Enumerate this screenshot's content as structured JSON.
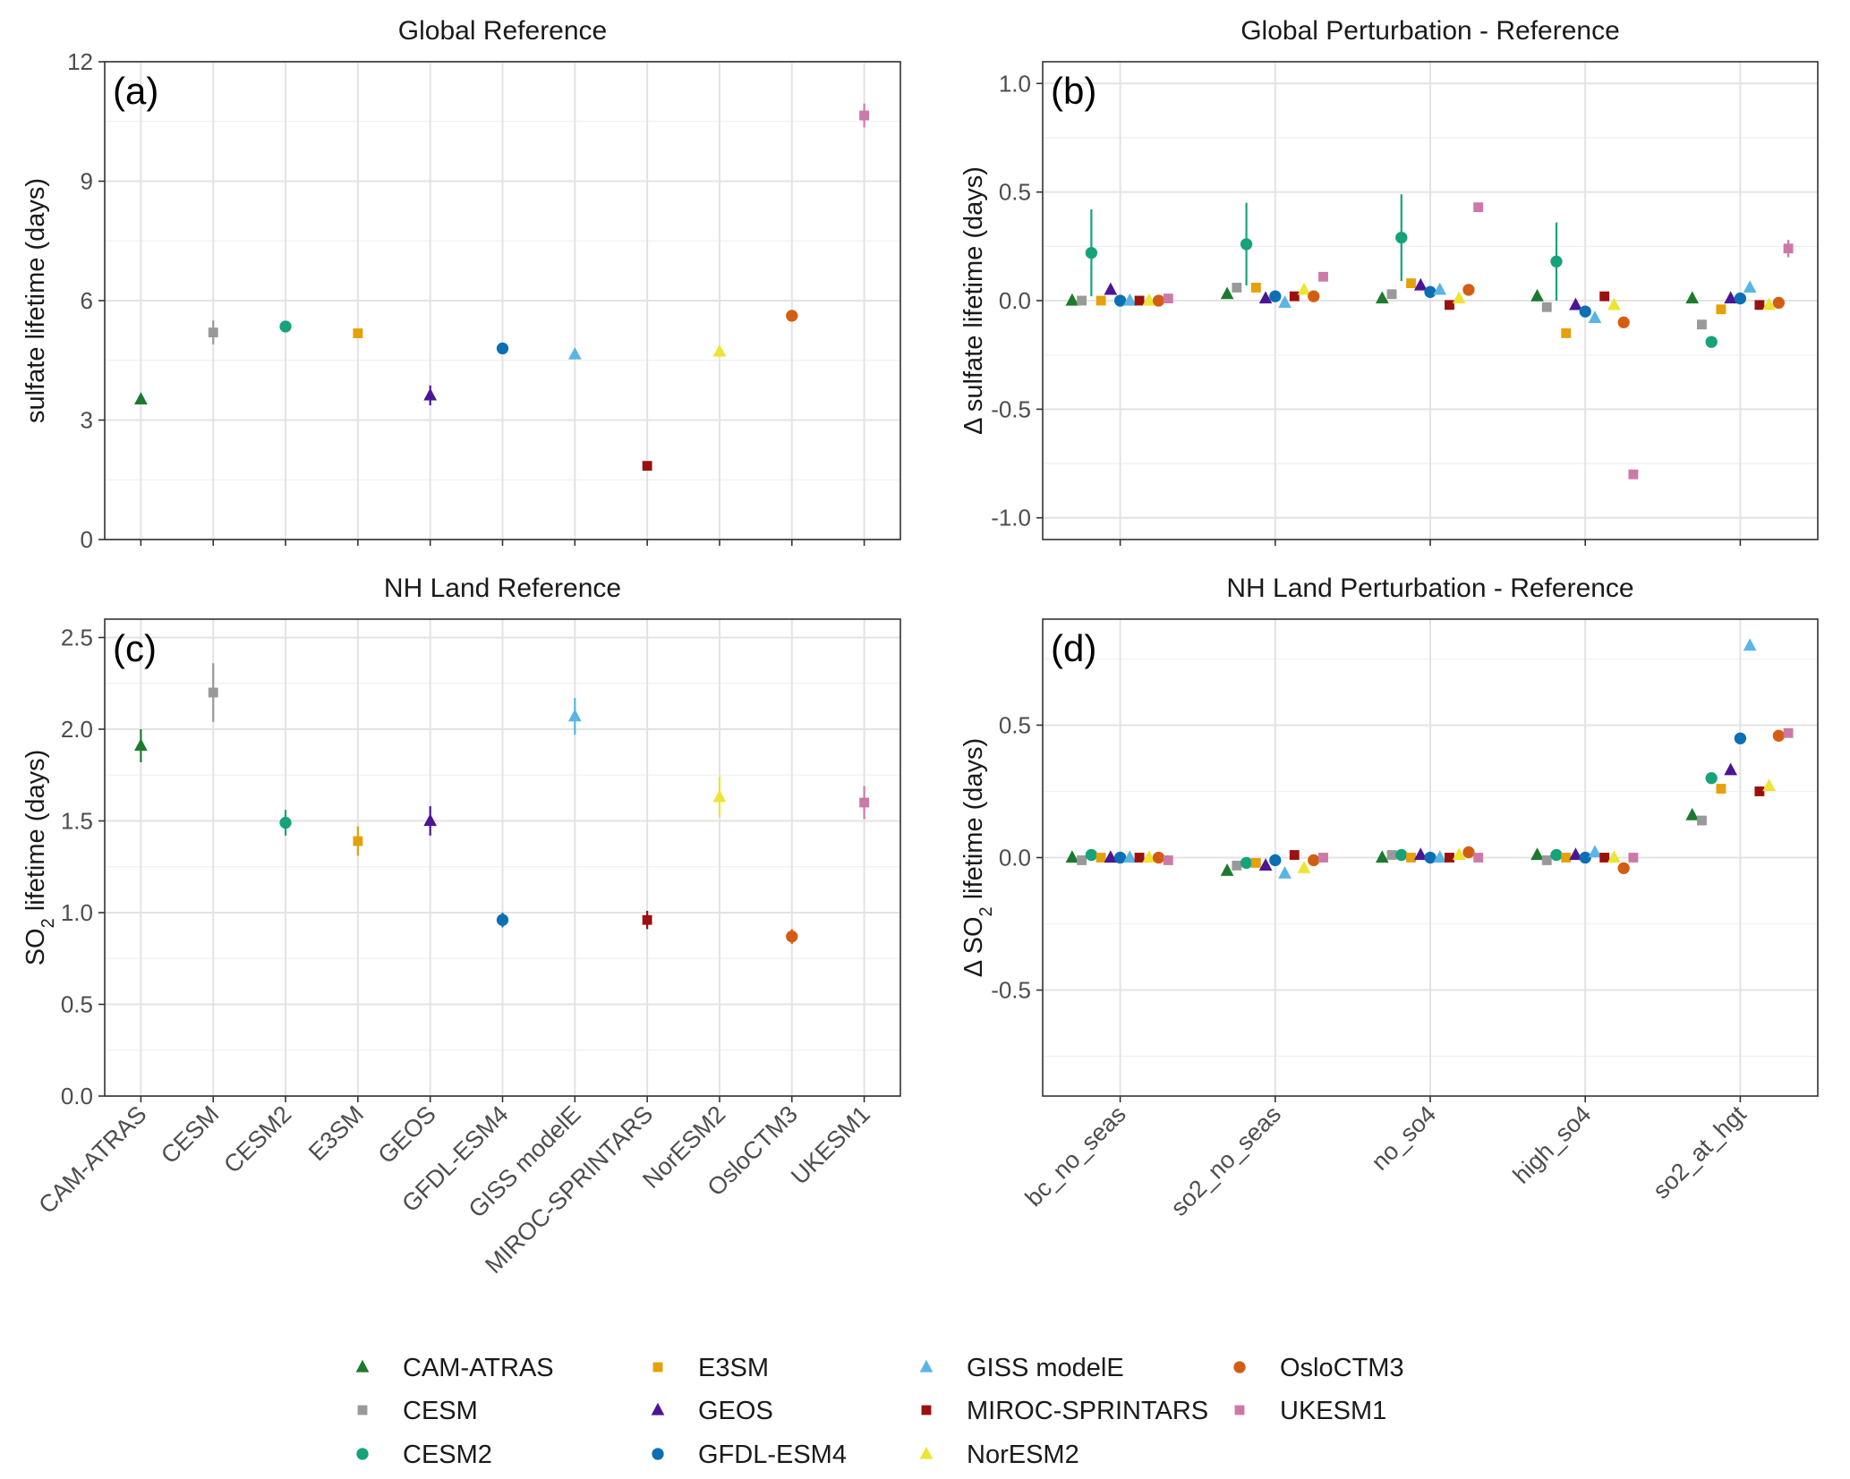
{
  "models": [
    "CAM-ATRAS",
    "CESM",
    "CESM2",
    "E3SM",
    "GEOS",
    "GFDL-ESM4",
    "GISS modelE",
    "MIROC-SPRINTARS",
    "NorESM2",
    "OsloCTM3",
    "UKESM1"
  ],
  "model_styles": {
    "CAM-ATRAS": {
      "color": "#1b7a2e",
      "shape": "triangle"
    },
    "CESM": {
      "color": "#999999",
      "shape": "square"
    },
    "CESM2": {
      "color": "#16a27a",
      "shape": "circle"
    },
    "E3SM": {
      "color": "#e6a00a",
      "shape": "square"
    },
    "GEOS": {
      "color": "#4b1694",
      "shape": "triangle"
    },
    "GFDL-ESM4": {
      "color": "#0c6fb4",
      "shape": "circle"
    },
    "GISS modelE": {
      "color": "#5ab5e4",
      "shape": "triangle"
    },
    "MIROC-SPRINTARS": {
      "color": "#9c1010",
      "shape": "square"
    },
    "NorESM2": {
      "color": "#ede433",
      "shape": "triangle"
    },
    "OsloCTM3": {
      "color": "#d35e13",
      "shape": "circle"
    },
    "UKESM1": {
      "color": "#cc79a7",
      "shape": "square"
    }
  },
  "legend_columns": [
    [
      "CAM-ATRAS",
      "CESM",
      "CESM2"
    ],
    [
      "E3SM",
      "GEOS",
      "GFDL-ESM4"
    ],
    [
      "GISS modelE",
      "MIROC-SPRINTARS",
      "NorESM2"
    ],
    [
      "OsloCTM3",
      "UKESM1"
    ]
  ],
  "chart_data": [
    {
      "id": "a",
      "type": "scatter",
      "panel_label": "(a)",
      "title": "Global Reference",
      "ylabel_prefix": "sulfate lifetime (days)",
      "ylabel_sub": "",
      "ylabel_suffix": "",
      "ylim": [
        0,
        12
      ],
      "yticks": [
        0,
        3,
        6,
        9,
        12
      ],
      "ytick_labels": [
        "0",
        "3",
        "6",
        "9",
        "12"
      ],
      "categories": [
        "CAM-ATRAS",
        "CESM",
        "CESM2",
        "E3SM",
        "GEOS",
        "GFDL-ESM4",
        "GISS modelE",
        "MIROC-SPRINTARS",
        "NorESM2",
        "OsloCTM3",
        "UKESM1"
      ],
      "show_xticklabels": false,
      "points": [
        {
          "model": "CAM-ATRAS",
          "value": 3.52,
          "err": 0.1
        },
        {
          "model": "CESM",
          "value": 5.2,
          "err": 0.3
        },
        {
          "model": "CESM2",
          "value": 5.35,
          "err": 0.12
        },
        {
          "model": "E3SM",
          "value": 5.18,
          "err": 0.1
        },
        {
          "model": "GEOS",
          "value": 3.62,
          "err": 0.25
        },
        {
          "model": "GFDL-ESM4",
          "value": 4.8,
          "err": 0.1
        },
        {
          "model": "GISS modelE",
          "value": 4.65,
          "err": 0.05
        },
        {
          "model": "MIROC-SPRINTARS",
          "value": 1.85,
          "err": 0.1
        },
        {
          "model": "NorESM2",
          "value": 4.72,
          "err": 0.12
        },
        {
          "model": "OsloCTM3",
          "value": 5.62,
          "err": 0.1
        },
        {
          "model": "UKESM1",
          "value": 10.65,
          "err": 0.3
        }
      ]
    },
    {
      "id": "b",
      "type": "scatter",
      "panel_label": "(b)",
      "title": "Global Perturbation - Reference",
      "ylabel_prefix": "Δ sulfate lifetime (days)",
      "ylabel_sub": "",
      "ylabel_suffix": "",
      "ylim": [
        -1.1,
        1.1
      ],
      "yticks": [
        -1.0,
        -0.5,
        0.0,
        0.5,
        1.0
      ],
      "ytick_labels": [
        "-1.0",
        "-0.5",
        "0.0",
        "0.5",
        "1.0"
      ],
      "categories": [
        "bc_no_seas",
        "so2_no_seas",
        "no_so4",
        "high_so4",
        "so2_at_hgt"
      ],
      "show_xticklabels": false,
      "points": [
        {
          "category": "bc_no_seas",
          "model": "CAM-ATRAS",
          "value": 0.0
        },
        {
          "category": "bc_no_seas",
          "model": "CESM",
          "value": 0.0
        },
        {
          "category": "bc_no_seas",
          "model": "CESM2",
          "value": 0.22,
          "err": 0.2
        },
        {
          "category": "bc_no_seas",
          "model": "E3SM",
          "value": 0.0
        },
        {
          "category": "bc_no_seas",
          "model": "GEOS",
          "value": 0.05
        },
        {
          "category": "bc_no_seas",
          "model": "GFDL-ESM4",
          "value": 0.0
        },
        {
          "category": "bc_no_seas",
          "model": "GISS modelE",
          "value": 0.0
        },
        {
          "category": "bc_no_seas",
          "model": "MIROC-SPRINTARS",
          "value": 0.0
        },
        {
          "category": "bc_no_seas",
          "model": "NorESM2",
          "value": 0.0
        },
        {
          "category": "bc_no_seas",
          "model": "OsloCTM3",
          "value": 0.0
        },
        {
          "category": "bc_no_seas",
          "model": "UKESM1",
          "value": 0.01
        },
        {
          "category": "so2_no_seas",
          "model": "CAM-ATRAS",
          "value": 0.03
        },
        {
          "category": "so2_no_seas",
          "model": "CESM",
          "value": 0.06
        },
        {
          "category": "so2_no_seas",
          "model": "CESM2",
          "value": 0.26,
          "err": 0.19
        },
        {
          "category": "so2_no_seas",
          "model": "E3SM",
          "value": 0.06
        },
        {
          "category": "so2_no_seas",
          "model": "GEOS",
          "value": 0.01
        },
        {
          "category": "so2_no_seas",
          "model": "GFDL-ESM4",
          "value": 0.02
        },
        {
          "category": "so2_no_seas",
          "model": "GISS modelE",
          "value": -0.01
        },
        {
          "category": "so2_no_seas",
          "model": "MIROC-SPRINTARS",
          "value": 0.02
        },
        {
          "category": "so2_no_seas",
          "model": "NorESM2",
          "value": 0.05
        },
        {
          "category": "so2_no_seas",
          "model": "OsloCTM3",
          "value": 0.02
        },
        {
          "category": "so2_no_seas",
          "model": "UKESM1",
          "value": 0.11
        },
        {
          "category": "no_so4",
          "model": "CAM-ATRAS",
          "value": 0.01
        },
        {
          "category": "no_so4",
          "model": "CESM",
          "value": 0.03
        },
        {
          "category": "no_so4",
          "model": "CESM2",
          "value": 0.29,
          "err": 0.2
        },
        {
          "category": "no_so4",
          "model": "E3SM",
          "value": 0.08
        },
        {
          "category": "no_so4",
          "model": "GEOS",
          "value": 0.07
        },
        {
          "category": "no_so4",
          "model": "GFDL-ESM4",
          "value": 0.04
        },
        {
          "category": "no_so4",
          "model": "GISS modelE",
          "value": 0.05
        },
        {
          "category": "no_so4",
          "model": "MIROC-SPRINTARS",
          "value": -0.02
        },
        {
          "category": "no_so4",
          "model": "NorESM2",
          "value": 0.01
        },
        {
          "category": "no_so4",
          "model": "OsloCTM3",
          "value": 0.05
        },
        {
          "category": "no_so4",
          "model": "UKESM1",
          "value": 0.43
        },
        {
          "category": "high_so4",
          "model": "CAM-ATRAS",
          "value": 0.02
        },
        {
          "category": "high_so4",
          "model": "CESM",
          "value": -0.03
        },
        {
          "category": "high_so4",
          "model": "CESM2",
          "value": 0.18,
          "err": 0.18
        },
        {
          "category": "high_so4",
          "model": "E3SM",
          "value": -0.15
        },
        {
          "category": "high_so4",
          "model": "GEOS",
          "value": -0.02
        },
        {
          "category": "high_so4",
          "model": "GFDL-ESM4",
          "value": -0.05
        },
        {
          "category": "high_so4",
          "model": "GISS modelE",
          "value": -0.08
        },
        {
          "category": "high_so4",
          "model": "MIROC-SPRINTARS",
          "value": 0.02
        },
        {
          "category": "high_so4",
          "model": "NorESM2",
          "value": -0.02
        },
        {
          "category": "high_so4",
          "model": "OsloCTM3",
          "value": -0.1
        },
        {
          "category": "high_so4",
          "model": "UKESM1",
          "value": -0.8
        },
        {
          "category": "so2_at_hgt",
          "model": "CAM-ATRAS",
          "value": 0.01
        },
        {
          "category": "so2_at_hgt",
          "model": "CESM",
          "value": -0.11
        },
        {
          "category": "so2_at_hgt",
          "model": "CESM2",
          "value": -0.19
        },
        {
          "category": "so2_at_hgt",
          "model": "E3SM",
          "value": -0.04
        },
        {
          "category": "so2_at_hgt",
          "model": "GEOS",
          "value": 0.01
        },
        {
          "category": "so2_at_hgt",
          "model": "GFDL-ESM4",
          "value": 0.01
        },
        {
          "category": "so2_at_hgt",
          "model": "GISS modelE",
          "value": 0.06
        },
        {
          "category": "so2_at_hgt",
          "model": "MIROC-SPRINTARS",
          "value": -0.02
        },
        {
          "category": "so2_at_hgt",
          "model": "NorESM2",
          "value": -0.02
        },
        {
          "category": "so2_at_hgt",
          "model": "OsloCTM3",
          "value": -0.01
        },
        {
          "category": "so2_at_hgt",
          "model": "UKESM1",
          "value": 0.24,
          "err": 0.04
        }
      ]
    },
    {
      "id": "c",
      "type": "scatter",
      "panel_label": "(c)",
      "title": "NH Land Reference",
      "ylabel_prefix": "SO",
      "ylabel_sub": "2",
      "ylabel_suffix": " lifetime (days)",
      "ylim": [
        0,
        2.6
      ],
      "yticks": [
        0.0,
        0.5,
        1.0,
        1.5,
        2.0,
        2.5
      ],
      "ytick_labels": [
        "0.0",
        "0.5",
        "1.0",
        "1.5",
        "2.0",
        "2.5"
      ],
      "categories": [
        "CAM-ATRAS",
        "CESM",
        "CESM2",
        "E3SM",
        "GEOS",
        "GFDL-ESM4",
        "GISS modelE",
        "MIROC-SPRINTARS",
        "NorESM2",
        "OsloCTM3",
        "UKESM1"
      ],
      "show_xticklabels": true,
      "points": [
        {
          "model": "CAM-ATRAS",
          "value": 1.91,
          "err": 0.09
        },
        {
          "model": "CESM",
          "value": 2.2,
          "err": 0.16
        },
        {
          "model": "CESM2",
          "value": 1.49,
          "err": 0.07
        },
        {
          "model": "E3SM",
          "value": 1.39,
          "err": 0.08
        },
        {
          "model": "GEOS",
          "value": 1.5,
          "err": 0.08
        },
        {
          "model": "GFDL-ESM4",
          "value": 0.96,
          "err": 0.04
        },
        {
          "model": "GISS modelE",
          "value": 2.07,
          "err": 0.1
        },
        {
          "model": "MIROC-SPRINTARS",
          "value": 0.96,
          "err": 0.05
        },
        {
          "model": "NorESM2",
          "value": 1.63,
          "err": 0.11
        },
        {
          "model": "OsloCTM3",
          "value": 0.87,
          "err": 0.04
        },
        {
          "model": "UKESM1",
          "value": 1.6,
          "err": 0.09
        }
      ]
    },
    {
      "id": "d",
      "type": "scatter",
      "panel_label": "(d)",
      "title": "NH Land Perturbation - Reference",
      "ylabel_prefix": "Δ SO",
      "ylabel_sub": "2",
      "ylabel_suffix": " lifetime (days)",
      "ylim": [
        -0.9,
        0.9
      ],
      "yticks": [
        -0.5,
        0.0,
        0.5
      ],
      "ytick_labels": [
        "-0.5",
        "0.0",
        "0.5"
      ],
      "categories": [
        "bc_no_seas",
        "so2_no_seas",
        "no_so4",
        "high_so4",
        "so2_at_hgt"
      ],
      "show_xticklabels": true,
      "points": [
        {
          "category": "bc_no_seas",
          "model": "CAM-ATRAS",
          "value": 0.0
        },
        {
          "category": "bc_no_seas",
          "model": "CESM",
          "value": -0.01
        },
        {
          "category": "bc_no_seas",
          "model": "CESM2",
          "value": 0.01
        },
        {
          "category": "bc_no_seas",
          "model": "E3SM",
          "value": 0.0
        },
        {
          "category": "bc_no_seas",
          "model": "GEOS",
          "value": 0.0
        },
        {
          "category": "bc_no_seas",
          "model": "GFDL-ESM4",
          "value": 0.0
        },
        {
          "category": "bc_no_seas",
          "model": "GISS modelE",
          "value": 0.0
        },
        {
          "category": "bc_no_seas",
          "model": "MIROC-SPRINTARS",
          "value": 0.0
        },
        {
          "category": "bc_no_seas",
          "model": "NorESM2",
          "value": 0.0
        },
        {
          "category": "bc_no_seas",
          "model": "OsloCTM3",
          "value": 0.0
        },
        {
          "category": "bc_no_seas",
          "model": "UKESM1",
          "value": -0.01
        },
        {
          "category": "so2_no_seas",
          "model": "CAM-ATRAS",
          "value": -0.05
        },
        {
          "category": "so2_no_seas",
          "model": "CESM",
          "value": -0.03
        },
        {
          "category": "so2_no_seas",
          "model": "CESM2",
          "value": -0.02
        },
        {
          "category": "so2_no_seas",
          "model": "E3SM",
          "value": -0.02
        },
        {
          "category": "so2_no_seas",
          "model": "GEOS",
          "value": -0.03
        },
        {
          "category": "so2_no_seas",
          "model": "GFDL-ESM4",
          "value": -0.01
        },
        {
          "category": "so2_no_seas",
          "model": "GISS modelE",
          "value": -0.06
        },
        {
          "category": "so2_no_seas",
          "model": "MIROC-SPRINTARS",
          "value": 0.01
        },
        {
          "category": "so2_no_seas",
          "model": "NorESM2",
          "value": -0.04
        },
        {
          "category": "so2_no_seas",
          "model": "OsloCTM3",
          "value": -0.01
        },
        {
          "category": "so2_no_seas",
          "model": "UKESM1",
          "value": 0.0
        },
        {
          "category": "no_so4",
          "model": "CAM-ATRAS",
          "value": 0.0
        },
        {
          "category": "no_so4",
          "model": "CESM",
          "value": 0.01
        },
        {
          "category": "no_so4",
          "model": "CESM2",
          "value": 0.01
        },
        {
          "category": "no_so4",
          "model": "E3SM",
          "value": 0.0
        },
        {
          "category": "no_so4",
          "model": "GEOS",
          "value": 0.01
        },
        {
          "category": "no_so4",
          "model": "GFDL-ESM4",
          "value": 0.0
        },
        {
          "category": "no_so4",
          "model": "GISS modelE",
          "value": 0.0
        },
        {
          "category": "no_so4",
          "model": "MIROC-SPRINTARS",
          "value": 0.0
        },
        {
          "category": "no_so4",
          "model": "NorESM2",
          "value": 0.01
        },
        {
          "category": "no_so4",
          "model": "OsloCTM3",
          "value": 0.02
        },
        {
          "category": "no_so4",
          "model": "UKESM1",
          "value": 0.0
        },
        {
          "category": "high_so4",
          "model": "CAM-ATRAS",
          "value": 0.01
        },
        {
          "category": "high_so4",
          "model": "CESM",
          "value": -0.01
        },
        {
          "category": "high_so4",
          "model": "CESM2",
          "value": 0.01
        },
        {
          "category": "high_so4",
          "model": "E3SM",
          "value": 0.0
        },
        {
          "category": "high_so4",
          "model": "GEOS",
          "value": 0.01
        },
        {
          "category": "high_so4",
          "model": "GFDL-ESM4",
          "value": 0.0
        },
        {
          "category": "high_so4",
          "model": "GISS modelE",
          "value": 0.02
        },
        {
          "category": "high_so4",
          "model": "MIROC-SPRINTARS",
          "value": 0.0
        },
        {
          "category": "high_so4",
          "model": "NorESM2",
          "value": 0.0
        },
        {
          "category": "high_so4",
          "model": "OsloCTM3",
          "value": -0.04
        },
        {
          "category": "high_so4",
          "model": "UKESM1",
          "value": 0.0
        },
        {
          "category": "so2_at_hgt",
          "model": "CAM-ATRAS",
          "value": 0.16
        },
        {
          "category": "so2_at_hgt",
          "model": "CESM",
          "value": 0.14
        },
        {
          "category": "so2_at_hgt",
          "model": "CESM2",
          "value": 0.3
        },
        {
          "category": "so2_at_hgt",
          "model": "E3SM",
          "value": 0.26
        },
        {
          "category": "so2_at_hgt",
          "model": "GEOS",
          "value": 0.33
        },
        {
          "category": "so2_at_hgt",
          "model": "GFDL-ESM4",
          "value": 0.45
        },
        {
          "category": "so2_at_hgt",
          "model": "GISS modelE",
          "value": 0.8
        },
        {
          "category": "so2_at_hgt",
          "model": "MIROC-SPRINTARS",
          "value": 0.25
        },
        {
          "category": "so2_at_hgt",
          "model": "NorESM2",
          "value": 0.27
        },
        {
          "category": "so2_at_hgt",
          "model": "OsloCTM3",
          "value": 0.46
        },
        {
          "category": "so2_at_hgt",
          "model": "UKESM1",
          "value": 0.47
        }
      ]
    }
  ]
}
